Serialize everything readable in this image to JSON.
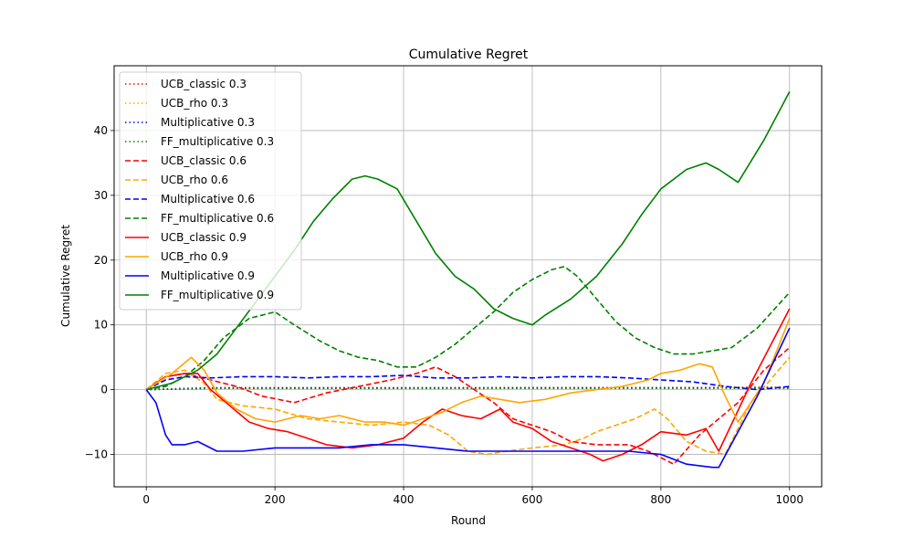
{
  "chart_data": {
    "type": "line",
    "title": "Cumulative Regret",
    "xlabel": "Round",
    "ylabel": "Cumulative Regret",
    "xlim": [
      -50,
      1050
    ],
    "ylim": [
      -15,
      50
    ],
    "xticks": [
      0,
      200,
      400,
      600,
      800,
      1000
    ],
    "yticks": [
      -10,
      0,
      10,
      20,
      30,
      40
    ],
    "grid": true,
    "legend_position": "top-left",
    "series": [
      {
        "name": "UCB_classic 0.3",
        "color": "#ff0000",
        "dash": "dotted",
        "points": [
          [
            0,
            0
          ],
          [
            100,
            0.2
          ],
          [
            200,
            0.2
          ],
          [
            400,
            0.2
          ],
          [
            600,
            0.3
          ],
          [
            800,
            0.3
          ],
          [
            1000,
            0.4
          ]
        ]
      },
      {
        "name": "UCB_rho 0.3",
        "color": "#ffa500",
        "dash": "dotted",
        "points": [
          [
            0,
            0
          ],
          [
            100,
            0.3
          ],
          [
            200,
            0.3
          ],
          [
            400,
            0.3
          ],
          [
            600,
            0.3
          ],
          [
            800,
            0.3
          ],
          [
            1000,
            0.4
          ]
        ]
      },
      {
        "name": "Multiplicative 0.3",
        "color": "#0000ff",
        "dash": "dotted",
        "points": [
          [
            0,
            0
          ],
          [
            100,
            0.3
          ],
          [
            200,
            0.3
          ],
          [
            400,
            0.3
          ],
          [
            600,
            0.3
          ],
          [
            800,
            0.3
          ],
          [
            1000,
            0.3
          ]
        ]
      },
      {
        "name": "FF_multiplicative 0.3",
        "color": "#008000",
        "dash": "dotted",
        "points": [
          [
            0,
            0
          ],
          [
            100,
            0.2
          ],
          [
            200,
            0.2
          ],
          [
            400,
            0.2
          ],
          [
            600,
            0.2
          ],
          [
            800,
            0.2
          ],
          [
            1000,
            0.2
          ]
        ]
      },
      {
        "name": "UCB_classic 0.6",
        "color": "#ff0000",
        "dash": "dashed",
        "points": [
          [
            0,
            0
          ],
          [
            30,
            2
          ],
          [
            60,
            2.5
          ],
          [
            100,
            1.5
          ],
          [
            140,
            0.5
          ],
          [
            180,
            -1
          ],
          [
            230,
            -2
          ],
          [
            280,
            -0.5
          ],
          [
            330,
            0.5
          ],
          [
            380,
            1.5
          ],
          [
            420,
            2.5
          ],
          [
            450,
            3.5
          ],
          [
            480,
            2
          ],
          [
            510,
            0
          ],
          [
            540,
            -2
          ],
          [
            570,
            -4.5
          ],
          [
            600,
            -5.5
          ],
          [
            630,
            -6.5
          ],
          [
            660,
            -8
          ],
          [
            700,
            -8.5
          ],
          [
            750,
            -8.5
          ],
          [
            780,
            -9.5
          ],
          [
            820,
            -11.5
          ],
          [
            860,
            -7
          ],
          [
            920,
            -2
          ],
          [
            960,
            3
          ],
          [
            1000,
            6.5
          ]
        ]
      },
      {
        "name": "UCB_rho 0.6",
        "color": "#ffa500",
        "dash": "dashed",
        "points": [
          [
            0,
            0
          ],
          [
            30,
            2.5
          ],
          [
            60,
            3
          ],
          [
            90,
            1
          ],
          [
            110,
            -1.5
          ],
          [
            150,
            -2.5
          ],
          [
            200,
            -3
          ],
          [
            250,
            -4.5
          ],
          [
            300,
            -5
          ],
          [
            350,
            -5.5
          ],
          [
            400,
            -5
          ],
          [
            440,
            -5.5
          ],
          [
            470,
            -7
          ],
          [
            500,
            -9.5
          ],
          [
            530,
            -10
          ],
          [
            560,
            -9.5
          ],
          [
            600,
            -9
          ],
          [
            650,
            -8.5
          ],
          [
            680,
            -7.5
          ],
          [
            700,
            -6.5
          ],
          [
            730,
            -5.5
          ],
          [
            760,
            -4.5
          ],
          [
            790,
            -3
          ],
          [
            810,
            -4.5
          ],
          [
            840,
            -8
          ],
          [
            870,
            -9.5
          ],
          [
            900,
            -10
          ],
          [
            940,
            -2
          ],
          [
            1000,
            5
          ]
        ]
      },
      {
        "name": "Multiplicative 0.6",
        "color": "#0000ff",
        "dash": "dashed",
        "points": [
          [
            0,
            0
          ],
          [
            30,
            1.5
          ],
          [
            60,
            2
          ],
          [
            100,
            1.8
          ],
          [
            150,
            2
          ],
          [
            200,
            2
          ],
          [
            250,
            1.8
          ],
          [
            300,
            2
          ],
          [
            350,
            2
          ],
          [
            400,
            2.2
          ],
          [
            450,
            1.8
          ],
          [
            500,
            1.8
          ],
          [
            550,
            2
          ],
          [
            600,
            1.8
          ],
          [
            650,
            2
          ],
          [
            700,
            2
          ],
          [
            750,
            1.8
          ],
          [
            800,
            1.5
          ],
          [
            850,
            1.2
          ],
          [
            900,
            0.5
          ],
          [
            950,
            0
          ],
          [
            1000,
            0.5
          ]
        ]
      },
      {
        "name": "FF_multiplicative 0.6",
        "color": "#008000",
        "dash": "dashed",
        "points": [
          [
            0,
            0
          ],
          [
            30,
            0.5
          ],
          [
            60,
            2
          ],
          [
            90,
            4.5
          ],
          [
            120,
            8
          ],
          [
            160,
            11
          ],
          [
            200,
            12
          ],
          [
            230,
            10
          ],
          [
            270,
            7.5
          ],
          [
            300,
            6
          ],
          [
            330,
            5
          ],
          [
            360,
            4.5
          ],
          [
            390,
            3.5
          ],
          [
            420,
            3.5
          ],
          [
            450,
            5
          ],
          [
            480,
            7
          ],
          [
            510,
            9.5
          ],
          [
            540,
            12
          ],
          [
            570,
            15
          ],
          [
            600,
            17
          ],
          [
            630,
            18.5
          ],
          [
            650,
            19
          ],
          [
            670,
            17.5
          ],
          [
            700,
            14
          ],
          [
            730,
            10.5
          ],
          [
            760,
            8
          ],
          [
            790,
            6.5
          ],
          [
            820,
            5.5
          ],
          [
            850,
            5.5
          ],
          [
            880,
            6
          ],
          [
            910,
            6.5
          ],
          [
            950,
            9.5
          ],
          [
            1000,
            15
          ]
        ]
      },
      {
        "name": "UCB_classic 0.9",
        "color": "#ff0000",
        "dash": "solid",
        "points": [
          [
            0,
            0
          ],
          [
            30,
            2
          ],
          [
            60,
            2.5
          ],
          [
            80,
            2.5
          ],
          [
            100,
            0
          ],
          [
            130,
            -2.5
          ],
          [
            160,
            -5
          ],
          [
            190,
            -6
          ],
          [
            220,
            -6.5
          ],
          [
            250,
            -7.5
          ],
          [
            280,
            -8.5
          ],
          [
            320,
            -9
          ],
          [
            360,
            -8.5
          ],
          [
            400,
            -7.5
          ],
          [
            430,
            -5
          ],
          [
            460,
            -3
          ],
          [
            490,
            -4
          ],
          [
            520,
            -4.5
          ],
          [
            550,
            -3
          ],
          [
            570,
            -5
          ],
          [
            600,
            -6
          ],
          [
            630,
            -8
          ],
          [
            660,
            -9
          ],
          [
            690,
            -10
          ],
          [
            710,
            -11
          ],
          [
            740,
            -10
          ],
          [
            770,
            -8.5
          ],
          [
            800,
            -6.5
          ],
          [
            840,
            -7
          ],
          [
            870,
            -6
          ],
          [
            890,
            -9.5
          ],
          [
            940,
            1
          ],
          [
            1000,
            12.5
          ]
        ]
      },
      {
        "name": "UCB_rho 0.9",
        "color": "#ffa500",
        "dash": "solid",
        "points": [
          [
            0,
            0
          ],
          [
            40,
            2.5
          ],
          [
            70,
            5
          ],
          [
            90,
            3
          ],
          [
            110,
            -0.5
          ],
          [
            140,
            -3
          ],
          [
            170,
            -4.5
          ],
          [
            200,
            -5
          ],
          [
            240,
            -4
          ],
          [
            270,
            -4.5
          ],
          [
            300,
            -4
          ],
          [
            340,
            -5
          ],
          [
            370,
            -5
          ],
          [
            400,
            -5.5
          ],
          [
            430,
            -4.5
          ],
          [
            460,
            -3.5
          ],
          [
            490,
            -2
          ],
          [
            520,
            -1
          ],
          [
            550,
            -1.5
          ],
          [
            580,
            -2
          ],
          [
            620,
            -1.5
          ],
          [
            660,
            -0.5
          ],
          [
            700,
            0
          ],
          [
            740,
            0.5
          ],
          [
            780,
            1.5
          ],
          [
            800,
            2.5
          ],
          [
            830,
            3
          ],
          [
            860,
            4
          ],
          [
            880,
            3.5
          ],
          [
            900,
            -1
          ],
          [
            920,
            -5
          ],
          [
            960,
            1
          ],
          [
            1000,
            11
          ]
        ]
      },
      {
        "name": "Multiplicative 0.9",
        "color": "#0000ff",
        "dash": "solid",
        "points": [
          [
            0,
            0
          ],
          [
            15,
            -2
          ],
          [
            30,
            -7
          ],
          [
            40,
            -8.5
          ],
          [
            60,
            -8.5
          ],
          [
            80,
            -8
          ],
          [
            110,
            -9.5
          ],
          [
            150,
            -9.5
          ],
          [
            200,
            -9
          ],
          [
            250,
            -9
          ],
          [
            300,
            -9
          ],
          [
            350,
            -8.5
          ],
          [
            400,
            -8.5
          ],
          [
            450,
            -9
          ],
          [
            500,
            -9.5
          ],
          [
            550,
            -9.5
          ],
          [
            600,
            -9.5
          ],
          [
            650,
            -9.5
          ],
          [
            700,
            -9.5
          ],
          [
            750,
            -9.5
          ],
          [
            800,
            -10
          ],
          [
            840,
            -11.5
          ],
          [
            880,
            -12
          ],
          [
            890,
            -12
          ],
          [
            950,
            -1
          ],
          [
            1000,
            9.5
          ]
        ]
      },
      {
        "name": "FF_multiplicative 0.9",
        "color": "#008000",
        "dash": "solid",
        "points": [
          [
            0,
            0
          ],
          [
            40,
            1
          ],
          [
            80,
            3
          ],
          [
            110,
            5.5
          ],
          [
            140,
            9.5
          ],
          [
            170,
            13.5
          ],
          [
            200,
            17.5
          ],
          [
            230,
            21.5
          ],
          [
            260,
            26
          ],
          [
            290,
            29.5
          ],
          [
            320,
            32.5
          ],
          [
            340,
            33
          ],
          [
            360,
            32.5
          ],
          [
            390,
            31
          ],
          [
            420,
            26
          ],
          [
            450,
            21
          ],
          [
            480,
            17.5
          ],
          [
            510,
            15.5
          ],
          [
            540,
            12.5
          ],
          [
            570,
            11
          ],
          [
            600,
            10
          ],
          [
            620,
            11.5
          ],
          [
            660,
            14
          ],
          [
            700,
            17.5
          ],
          [
            740,
            22.5
          ],
          [
            770,
            27
          ],
          [
            800,
            31
          ],
          [
            840,
            34
          ],
          [
            870,
            35
          ],
          [
            890,
            34
          ],
          [
            920,
            32
          ],
          [
            960,
            38.5
          ],
          [
            1000,
            46
          ]
        ]
      }
    ]
  }
}
